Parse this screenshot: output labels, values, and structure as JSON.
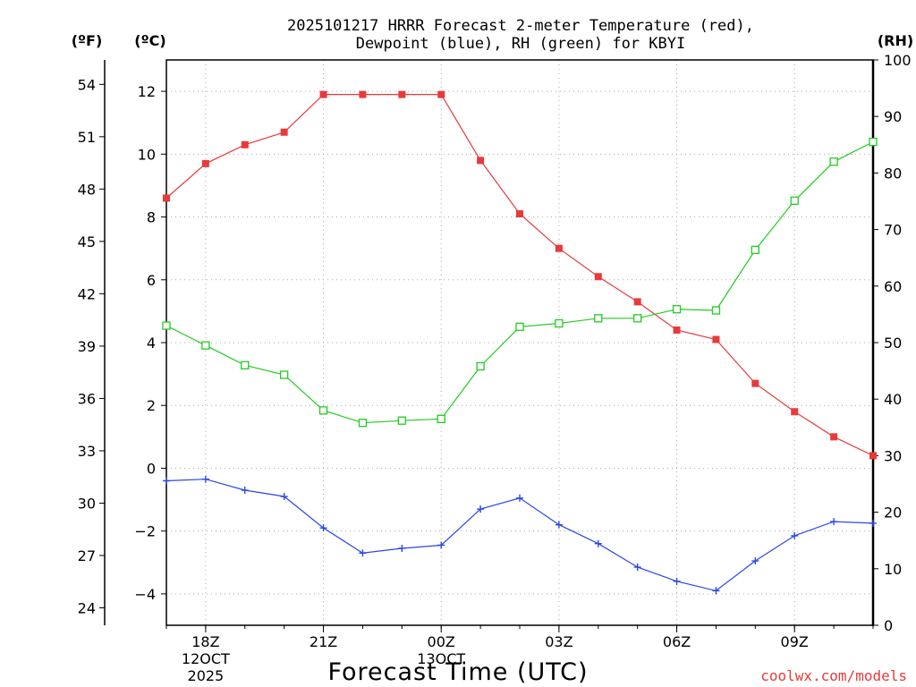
{
  "chart_data": {
    "type": "line",
    "title_line1": "2025101217 HRRR Forecast 2-meter Temperature (red),",
    "title_line2": "Dewpoint (blue), RH (green) for KBYI",
    "xlabel": "Forecast Time (UTC)",
    "credit": "coolwx.com/models",
    "units": {
      "fahrenheit": "(ºF)",
      "celsius": "(ºC)",
      "rh": "(RH)"
    },
    "colors": {
      "temperature": "#e83a3a",
      "dewpoint": "#2a47e8",
      "rh": "#22cc22",
      "credit": "#e83a3a"
    },
    "x_hours": [
      17,
      18,
      19,
      20,
      21,
      22,
      23,
      24,
      25,
      26,
      27,
      28,
      29,
      30,
      31,
      32,
      33,
      34,
      35
    ],
    "xlim": [
      17,
      35
    ],
    "x_ticks": [
      {
        "hour": 18,
        "label": "18Z",
        "date": "12OCT",
        "year": "2025"
      },
      {
        "hour": 21,
        "label": "21Z",
        "date": "",
        "year": ""
      },
      {
        "hour": 24,
        "label": "00Z",
        "date": "13OCT",
        "year": ""
      },
      {
        "hour": 27,
        "label": "03Z",
        "date": "",
        "year": ""
      },
      {
        "hour": 30,
        "label": "06Z",
        "date": "",
        "year": ""
      },
      {
        "hour": 33,
        "label": "09Z",
        "date": "",
        "year": ""
      }
    ],
    "celsius_axis": {
      "ylim": [
        -5,
        13
      ],
      "ticks": [
        -4,
        -2,
        0,
        2,
        4,
        6,
        8,
        10,
        12
      ],
      "tick_labels": [
        "−4",
        "−2",
        "0",
        "2",
        "4",
        "6",
        "8",
        "10",
        "12"
      ]
    },
    "fahrenheit_axis": {
      "ticks": [
        24,
        27,
        30,
        33,
        36,
        39,
        42,
        45,
        48,
        51,
        54
      ],
      "tick_labels": [
        "24",
        "27",
        "30",
        "33",
        "36",
        "39",
        "42",
        "45",
        "48",
        "51",
        "54"
      ]
    },
    "rh_axis": {
      "ylim": [
        0,
        100
      ],
      "ticks": [
        0,
        10,
        20,
        30,
        40,
        50,
        60,
        70,
        80,
        90,
        100
      ],
      "tick_labels": [
        "0",
        "10",
        "20",
        "30",
        "40",
        "50",
        "60",
        "70",
        "80",
        "90",
        "100"
      ]
    },
    "series": [
      {
        "name": "Temperature",
        "axis": "celsius",
        "marker": "filled-square",
        "values": [
          8.6,
          9.7,
          10.3,
          10.7,
          11.9,
          11.9,
          11.9,
          11.9,
          9.8,
          8.1,
          7.0,
          6.1,
          5.3,
          4.4,
          4.1,
          2.7,
          1.8,
          1.0,
          0.4
        ]
      },
      {
        "name": "Dewpoint",
        "axis": "celsius",
        "marker": "plus",
        "values": [
          -0.4,
          -0.35,
          -0.7,
          -0.9,
          -1.9,
          -2.7,
          -2.55,
          -2.45,
          -1.3,
          -0.95,
          -1.8,
          -2.4,
          -3.15,
          -3.6,
          -3.9,
          -2.95,
          -2.15,
          -1.7,
          -1.75
        ]
      },
      {
        "name": "RH",
        "axis": "rh",
        "marker": "open-square",
        "values": [
          53,
          49.5,
          46,
          44.3,
          38,
          35.8,
          36.2,
          36.5,
          45.8,
          52.8,
          53.4,
          54.3,
          54.3,
          55.9,
          55.7,
          66.4,
          75.1,
          82,
          85.5
        ]
      }
    ]
  }
}
